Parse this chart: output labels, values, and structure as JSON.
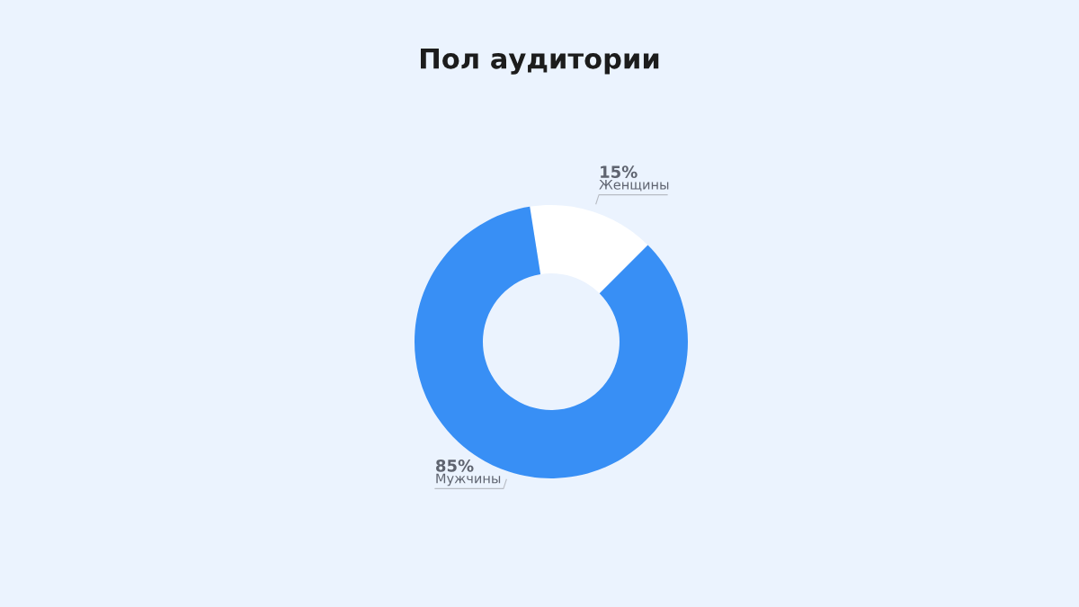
{
  "chart_data": {
    "type": "donut",
    "title": "Пол аудитории",
    "categories": [
      "Женщины",
      "Мужчины"
    ],
    "values": [
      15,
      85
    ],
    "colors": [
      "#ffffff",
      "#388ff5"
    ],
    "value_labels": [
      "15%",
      "85%"
    ],
    "legend": false
  }
}
